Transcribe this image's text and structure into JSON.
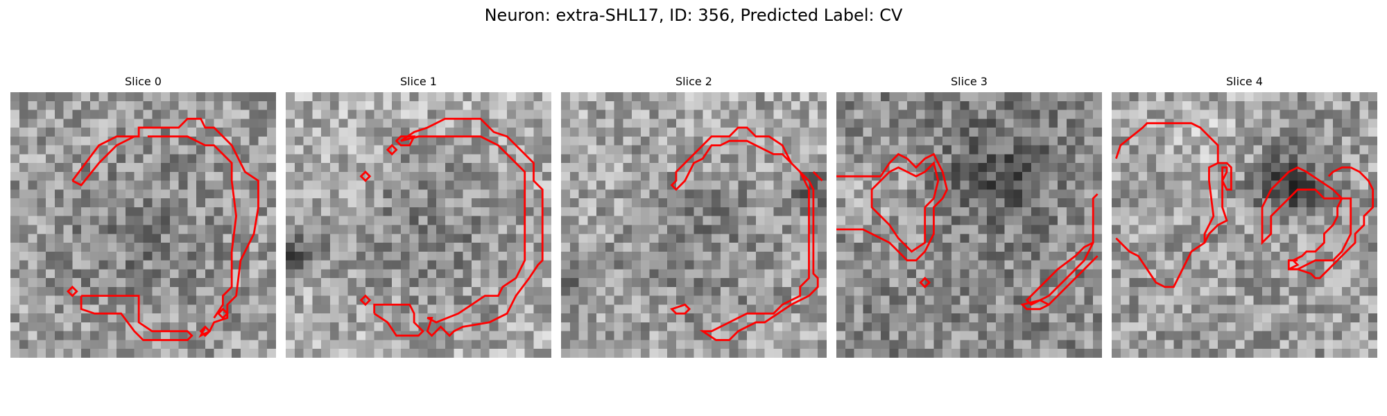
{
  "figure": {
    "title": "Neuron: extra-SHL17, ID: 356, Predicted Label: CV"
  },
  "panels": [
    {
      "title": "Slice 0"
    },
    {
      "title": "Slice 1"
    },
    {
      "title": "Slice 2"
    },
    {
      "title": "Slice 3"
    },
    {
      "title": "Slice 4"
    }
  ],
  "colors": {
    "contour": "#ff0000",
    "colormap": "gray"
  }
}
